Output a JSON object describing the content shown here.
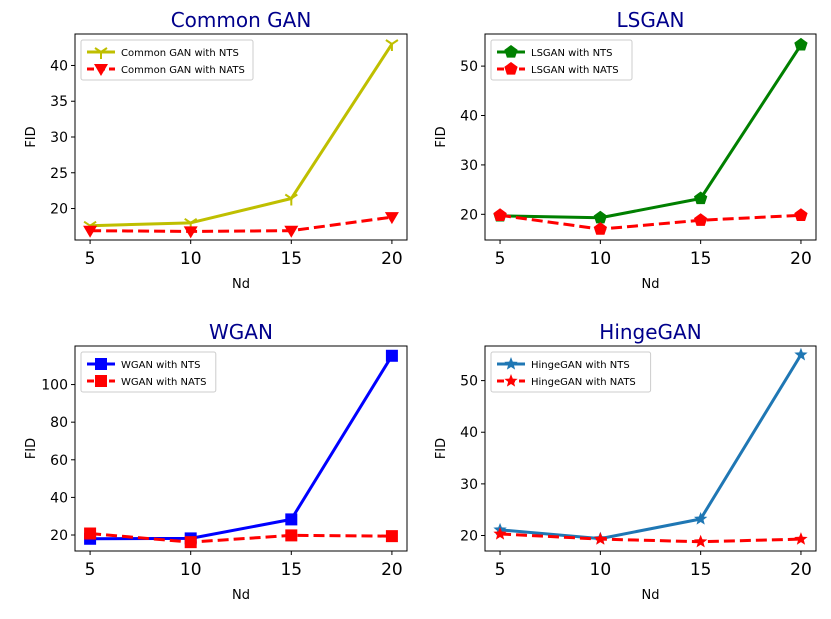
{
  "chart_data": [
    {
      "type": "line",
      "title": "Common GAN",
      "xlabel": "Nd",
      "ylabel": "FID",
      "x": [
        5,
        10,
        15,
        20
      ],
      "xlim": [
        4.25,
        20.75
      ],
      "ylim": [
        15.6,
        44.4
      ],
      "yticks": [
        20,
        25,
        30,
        35,
        40
      ],
      "legend_position": "upper-left",
      "series": [
        {
          "name": "Common GAN with NTS",
          "values": [
            17.6,
            18.0,
            21.4,
            43.0
          ],
          "color": "#bfbf00",
          "dash": "solid",
          "marker": "tri_down"
        },
        {
          "name": "Common GAN with NATS",
          "values": [
            16.9,
            16.8,
            16.9,
            18.8
          ],
          "color": "#ff0000",
          "dash": "dashed",
          "marker": "triangle_down"
        }
      ]
    },
    {
      "type": "line",
      "title": "LSGAN",
      "xlabel": "Nd",
      "ylabel": "FID",
      "x": [
        5,
        10,
        15,
        20
      ],
      "xlim": [
        4.25,
        20.75
      ],
      "ylim": [
        14.8,
        56.5
      ],
      "yticks": [
        20,
        30,
        40,
        50
      ],
      "legend_position": "upper-left",
      "series": [
        {
          "name": "LSGAN with NTS",
          "values": [
            19.7,
            19.3,
            23.2,
            54.3
          ],
          "color": "#008000",
          "dash": "solid",
          "marker": "pentagon"
        },
        {
          "name": "LSGAN with NATS",
          "values": [
            19.8,
            17.0,
            18.8,
            19.8
          ],
          "color": "#ff0000",
          "dash": "dashed",
          "marker": "pentagon"
        }
      ]
    },
    {
      "type": "line",
      "title": "WGAN",
      "xlabel": "Nd",
      "ylabel": "FID",
      "x": [
        5,
        10,
        15,
        20
      ],
      "xlim": [
        4.25,
        20.75
      ],
      "ylim": [
        11.5,
        120.5
      ],
      "yticks": [
        20,
        40,
        60,
        80,
        100
      ],
      "legend_position": "upper-left",
      "series": [
        {
          "name": "WGAN with NTS",
          "values": [
            18.0,
            18.2,
            28.3,
            115.3
          ],
          "color": "#0000ff",
          "dash": "solid",
          "marker": "square"
        },
        {
          "name": "WGAN with NATS",
          "values": [
            20.8,
            16.2,
            19.8,
            19.4
          ],
          "color": "#ff0000",
          "dash": "dashed",
          "marker": "square"
        }
      ]
    },
    {
      "type": "line",
      "title": "HingeGAN",
      "xlabel": "Nd",
      "ylabel": "FID",
      "x": [
        5,
        10,
        15,
        20
      ],
      "xlim": [
        4.25,
        20.75
      ],
      "ylim": [
        17.0,
        56.7
      ],
      "yticks": [
        20,
        30,
        40,
        50
      ],
      "legend_position": "upper-left",
      "series": [
        {
          "name": "HingeGAN with NTS",
          "values": [
            21.1,
            19.4,
            23.2,
            55.0
          ],
          "color": "#1f77b4",
          "dash": "solid",
          "marker": "star"
        },
        {
          "name": "HingeGAN with NATS",
          "values": [
            20.3,
            19.3,
            18.8,
            19.3
          ],
          "color": "#ff0000",
          "dash": "dashed",
          "marker": "star"
        }
      ]
    }
  ]
}
